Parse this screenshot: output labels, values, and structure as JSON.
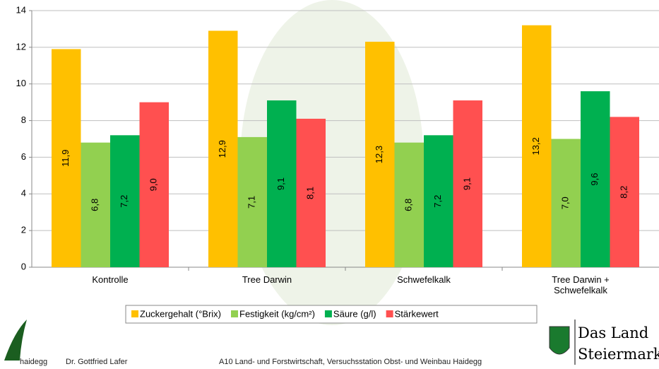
{
  "chart_data": {
    "type": "bar",
    "categories": [
      "Kontrolle",
      "Tree Darwin",
      "Schwefelkalk",
      "Tree Darwin + Schwefelkalk"
    ],
    "series": [
      {
        "name": "Zuckergehalt (°Brix)",
        "color": "#FFC000",
        "values": [
          11.9,
          12.9,
          12.3,
          13.2
        ],
        "value_labels": [
          "11,9",
          "12,9",
          "12,3",
          "13,2"
        ]
      },
      {
        "name": "Festigkeit (kg/cm²)",
        "color": "#92D050",
        "values": [
          6.8,
          7.1,
          6.8,
          7.0
        ],
        "value_labels": [
          "6,8",
          "7,1",
          "6,8",
          "7,0"
        ]
      },
      {
        "name": "Säure (g/l)",
        "color": "#00B050",
        "values": [
          7.2,
          9.1,
          7.2,
          9.6
        ],
        "value_labels": [
          "7,2",
          "9,1",
          "7,2",
          "9,6"
        ]
      },
      {
        "name": "Stärkewert",
        "color": "#FF5050",
        "values": [
          9.0,
          8.1,
          9.1,
          8.2
        ],
        "value_labels": [
          "9,0",
          "8,1",
          "9,1",
          "8,2"
        ]
      }
    ],
    "ylim": [
      0,
      14
    ],
    "yticks": [
      0,
      2,
      4,
      6,
      8,
      10,
      12,
      14
    ],
    "grid": true,
    "legend": "bottom"
  },
  "footer": {
    "logo": "haidegg",
    "author": "Dr. Gottfried Lafer",
    "institution": "A10 Land- und Forstwirtschaft, Versuchsstation Obst- und Weinbau Haidegg",
    "brand_line1": "Das Land",
    "brand_line2": "Steiermark"
  }
}
